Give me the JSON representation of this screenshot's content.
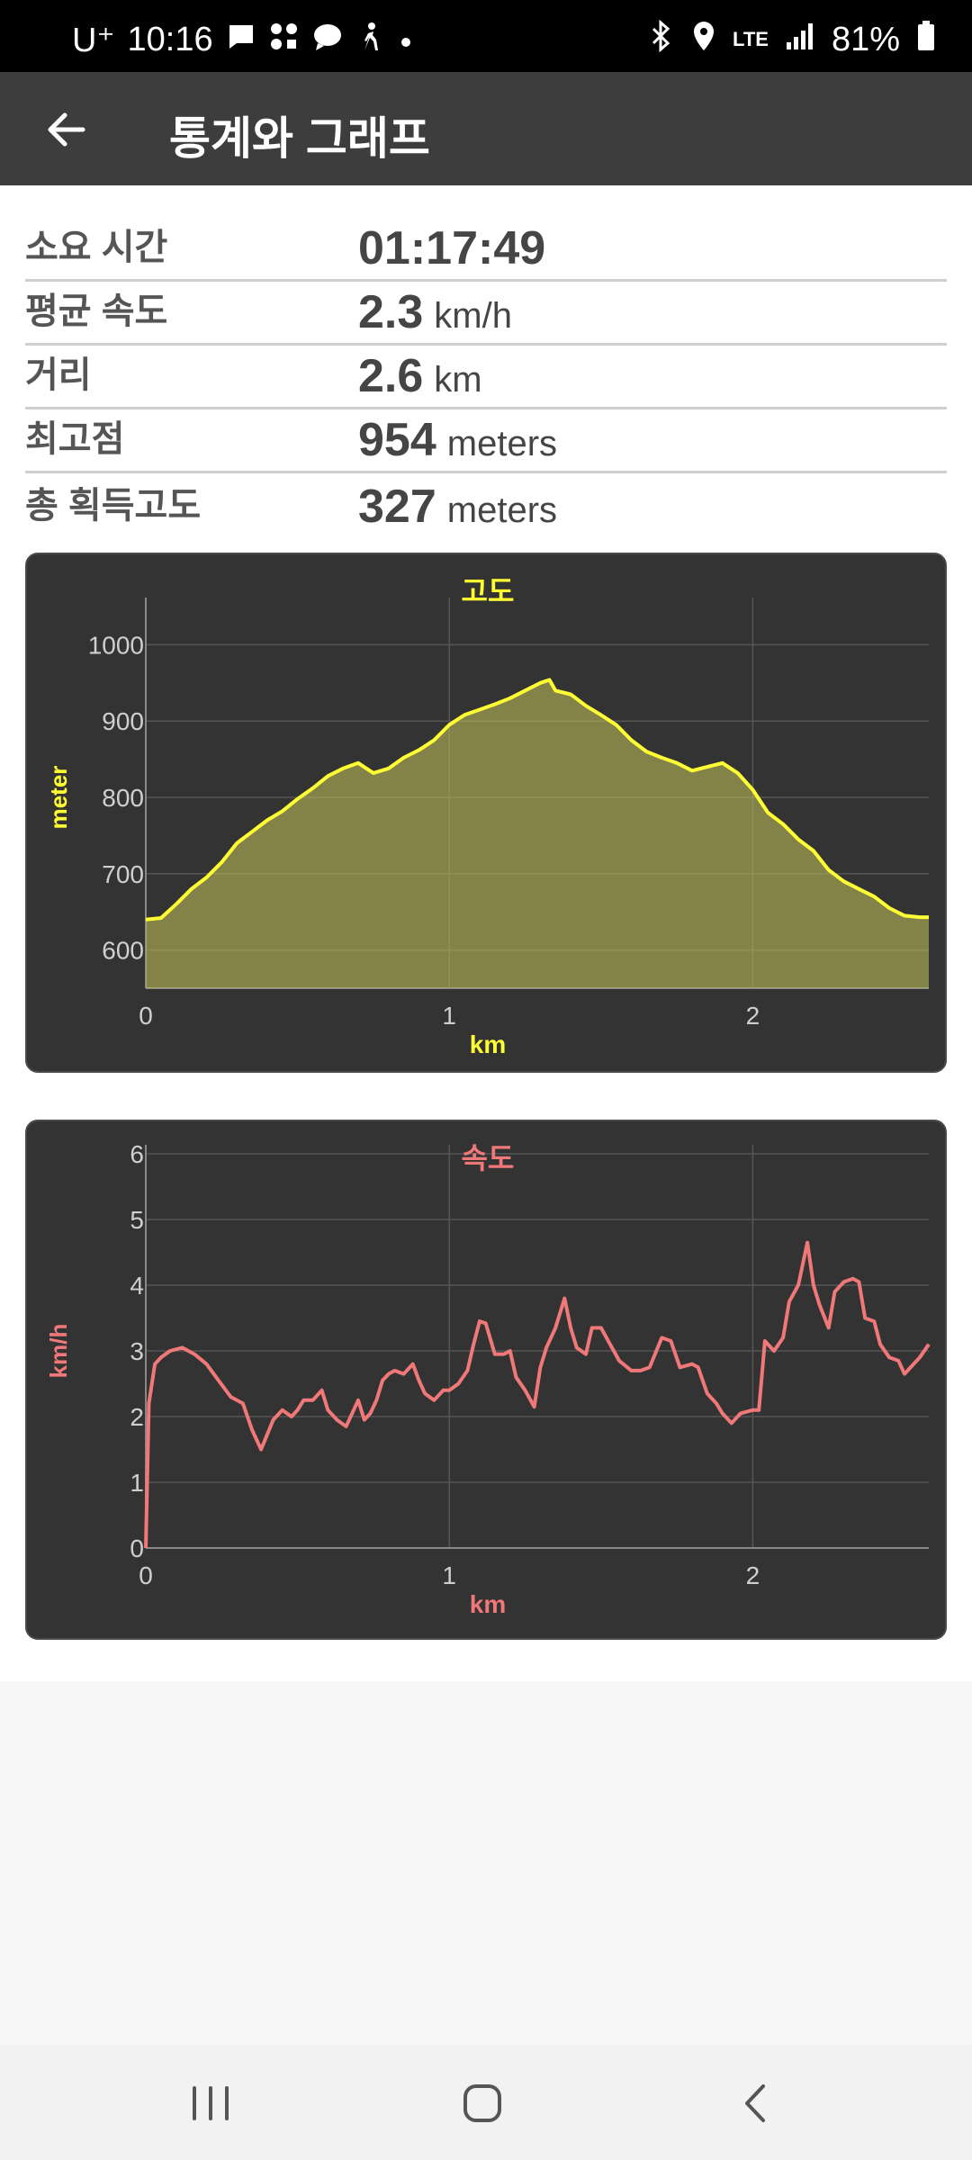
{
  "status": {
    "carrier": "U⁺",
    "time": "10:16",
    "network": "LTE",
    "battery": "81%"
  },
  "appbar": {
    "title": "통계와 그래프"
  },
  "stats": [
    {
      "label": "소요 시간",
      "value": "01:17:49",
      "unit": ""
    },
    {
      "label": "평균 속도",
      "value": "2.3",
      "unit": "km/h"
    },
    {
      "label": "거리",
      "value": "2.6",
      "unit": "km"
    },
    {
      "label": "최고점",
      "value": "954",
      "unit": "meters"
    },
    {
      "label": "총 획득고도",
      "value": "327",
      "unit": "meters"
    }
  ],
  "colors": {
    "altitude": "#ffff33",
    "speed": "#f07878",
    "card": "#333333",
    "appbar": "#3d3d3d"
  },
  "chart_data": [
    {
      "type": "area",
      "title": "고도",
      "xlabel": "km",
      "ylabel": "meter",
      "xlim": [
        0,
        2.58
      ],
      "ylim": [
        550,
        1050
      ],
      "xticks": [
        0,
        1,
        2
      ],
      "yticks": [
        600,
        700,
        800,
        900,
        1000
      ],
      "grid": true,
      "series": [
        {
          "x": [
            0,
            0.05,
            0.1,
            0.15,
            0.2,
            0.25,
            0.3,
            0.35,
            0.4,
            0.45,
            0.5,
            0.55,
            0.6,
            0.65,
            0.7,
            0.75,
            0.8,
            0.85,
            0.9,
            0.95,
            1.0,
            1.05,
            1.1,
            1.15,
            1.2,
            1.25,
            1.3,
            1.33,
            1.35,
            1.4,
            1.45,
            1.5,
            1.55,
            1.6,
            1.65,
            1.7,
            1.75,
            1.8,
            1.85,
            1.9,
            1.95,
            2.0,
            2.05,
            2.1,
            2.15,
            2.2,
            2.25,
            2.3,
            2.35,
            2.4,
            2.45,
            2.5,
            2.55,
            2.58
          ],
          "values": [
            640,
            642,
            660,
            680,
            695,
            715,
            740,
            755,
            770,
            782,
            798,
            812,
            828,
            838,
            845,
            832,
            838,
            852,
            862,
            875,
            895,
            908,
            915,
            922,
            930,
            940,
            950,
            954,
            940,
            935,
            920,
            908,
            895,
            875,
            860,
            852,
            845,
            835,
            840,
            845,
            832,
            810,
            780,
            765,
            745,
            730,
            705,
            690,
            680,
            670,
            655,
            645,
            643,
            643
          ]
        }
      ]
    },
    {
      "type": "line",
      "title": "속도",
      "xlabel": "km",
      "ylabel": "km/h",
      "xlim": [
        0,
        2.58
      ],
      "ylim": [
        0,
        6
      ],
      "xticks": [
        0,
        1,
        2
      ],
      "yticks": [
        0,
        1,
        2,
        3,
        4,
        5,
        6
      ],
      "grid": true,
      "series": [
        {
          "x": [
            0,
            0.01,
            0.03,
            0.05,
            0.08,
            0.12,
            0.16,
            0.2,
            0.24,
            0.28,
            0.32,
            0.35,
            0.38,
            0.42,
            0.45,
            0.48,
            0.5,
            0.52,
            0.55,
            0.58,
            0.6,
            0.63,
            0.66,
            0.7,
            0.72,
            0.74,
            0.76,
            0.78,
            0.8,
            0.82,
            0.85,
            0.88,
            0.9,
            0.92,
            0.95,
            0.98,
            1.0,
            1.03,
            1.06,
            1.08,
            1.1,
            1.12,
            1.15,
            1.18,
            1.2,
            1.22,
            1.25,
            1.28,
            1.3,
            1.32,
            1.35,
            1.38,
            1.4,
            1.42,
            1.45,
            1.47,
            1.5,
            1.53,
            1.56,
            1.6,
            1.63,
            1.66,
            1.7,
            1.73,
            1.76,
            1.8,
            1.82,
            1.85,
            1.88,
            1.9,
            1.93,
            1.96,
            2.0,
            2.02,
            2.04,
            2.07,
            2.1,
            2.12,
            2.15,
            2.18,
            2.2,
            2.22,
            2.25,
            2.27,
            2.3,
            2.33,
            2.35,
            2.37,
            2.4,
            2.42,
            2.45,
            2.48,
            2.5,
            2.52,
            2.55,
            2.58
          ],
          "values": [
            0,
            2.2,
            2.8,
            2.9,
            3.0,
            3.05,
            2.95,
            2.8,
            2.55,
            2.3,
            2.2,
            1.8,
            1.5,
            1.95,
            2.1,
            2.0,
            2.1,
            2.25,
            2.25,
            2.4,
            2.1,
            1.95,
            1.85,
            2.25,
            1.95,
            2.05,
            2.25,
            2.55,
            2.65,
            2.7,
            2.65,
            2.8,
            2.55,
            2.35,
            2.25,
            2.4,
            2.4,
            2.5,
            2.7,
            3.1,
            3.45,
            3.42,
            2.95,
            2.95,
            3.0,
            2.6,
            2.4,
            2.15,
            2.75,
            3.05,
            3.35,
            3.8,
            3.35,
            3.05,
            2.95,
            3.35,
            3.35,
            3.1,
            2.85,
            2.7,
            2.7,
            2.75,
            3.2,
            3.15,
            2.75,
            2.8,
            2.75,
            2.35,
            2.2,
            2.05,
            1.9,
            2.05,
            2.1,
            2.1,
            3.15,
            3.0,
            3.2,
            3.75,
            4.0,
            4.65,
            4.0,
            3.7,
            3.35,
            3.9,
            4.05,
            4.1,
            4.05,
            3.5,
            3.45,
            3.1,
            2.9,
            2.85,
            2.65,
            2.75,
            2.9,
            3.1
          ]
        }
      ]
    }
  ]
}
